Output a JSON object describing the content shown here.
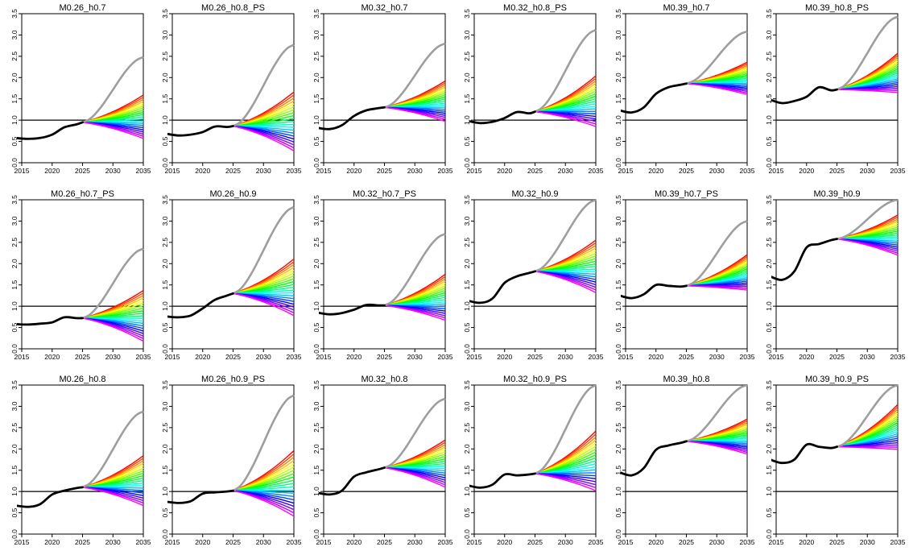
{
  "figure": {
    "colors": {
      "historical": "#000000",
      "high_projection": "#9e9e9e",
      "reference_line": "#000000",
      "rainbow_scale": [
        "#ff0000",
        "#ff8000",
        "#ffff00",
        "#80ff00",
        "#00ff00",
        "#00ff80",
        "#00ffff",
        "#0080ff",
        "#0000ff",
        "#8000ff",
        "#ff00ff"
      ]
    },
    "x_ticks": [
      "2015",
      "2020",
      "2025",
      "2030",
      "2035"
    ],
    "y_ticks": [
      "0.0",
      "0.5",
      "1.0",
      "1.5",
      "2.0",
      "2.5",
      "3.0",
      "3.5"
    ]
  },
  "chart_data": [
    {
      "type": "line",
      "title": "M0.26_h0.7",
      "xlim": [
        2015,
        2035
      ],
      "ylim": [
        0,
        3.5
      ],
      "reference_line": 1.0,
      "x_hist": [
        2014,
        2016,
        2018,
        2020,
        2022,
        2024,
        2025
      ],
      "hist_values": [
        0.58,
        0.56,
        0.58,
        0.66,
        0.83,
        0.9,
        0.95
      ],
      "proj_start": 2025,
      "proj_end": 2035,
      "proj_start_value": 0.95,
      "grey_end": 2.48,
      "proj_top_end": 1.59,
      "proj_bottom_end": 0.57,
      "n_scenarios": 21
    },
    {
      "type": "line",
      "title": "M0.26_h0.8_PS",
      "xlim": [
        2015,
        2035
      ],
      "ylim": [
        0,
        3.5
      ],
      "reference_line": 1.0,
      "x_hist": [
        2014,
        2016,
        2018,
        2020,
        2022,
        2024,
        2025
      ],
      "hist_values": [
        0.68,
        0.64,
        0.66,
        0.72,
        0.85,
        0.84,
        0.86
      ],
      "proj_start": 2025,
      "proj_end": 2035,
      "proj_start_value": 0.86,
      "grey_end": 2.77,
      "proj_top_end": 1.66,
      "proj_bottom_end": 0.28,
      "n_scenarios": 21
    },
    {
      "type": "line",
      "title": "M0.32_h0.7",
      "xlim": [
        2015,
        2035
      ],
      "ylim": [
        0,
        3.5
      ],
      "reference_line": 1.0,
      "x_hist": [
        2014,
        2016,
        2018,
        2020,
        2022,
        2024,
        2025
      ],
      "hist_values": [
        0.82,
        0.79,
        0.88,
        1.1,
        1.23,
        1.28,
        1.3
      ],
      "proj_start": 2025,
      "proj_end": 2035,
      "proj_start_value": 1.3,
      "grey_end": 2.8,
      "proj_top_end": 1.92,
      "proj_bottom_end": 0.97,
      "n_scenarios": 21
    },
    {
      "type": "line",
      "title": "M0.32_h0.8_PS",
      "xlim": [
        2015,
        2035
      ],
      "ylim": [
        0,
        3.5
      ],
      "reference_line": 1.0,
      "x_hist": [
        2014,
        2016,
        2018,
        2020,
        2022,
        2024,
        2025
      ],
      "hist_values": [
        0.98,
        0.93,
        0.96,
        1.05,
        1.19,
        1.16,
        1.2
      ],
      "proj_start": 2025,
      "proj_end": 2035,
      "proj_start_value": 1.2,
      "grey_end": 3.12,
      "proj_top_end": 2.04,
      "proj_bottom_end": 0.85,
      "n_scenarios": 21
    },
    {
      "type": "line",
      "title": "M0.39_h0.7",
      "xlim": [
        2015,
        2035
      ],
      "ylim": [
        0,
        3.5
      ],
      "reference_line": 1.0,
      "x_hist": [
        2014,
        2016,
        2018,
        2020,
        2022,
        2024,
        2025
      ],
      "hist_values": [
        1.23,
        1.18,
        1.3,
        1.62,
        1.77,
        1.83,
        1.86
      ],
      "proj_start": 2025,
      "proj_end": 2035,
      "proj_start_value": 1.86,
      "grey_end": 3.08,
      "proj_top_end": 2.36,
      "proj_bottom_end": 1.6,
      "n_scenarios": 21
    },
    {
      "type": "line",
      "title": "M0.39_h0.8_PS",
      "xlim": [
        2015,
        2035
      ],
      "ylim": [
        0,
        3.5
      ],
      "reference_line": 1.0,
      "x_hist": [
        2014,
        2016,
        2018,
        2020,
        2022,
        2024,
        2025
      ],
      "hist_values": [
        1.48,
        1.4,
        1.45,
        1.55,
        1.77,
        1.7,
        1.72
      ],
      "proj_start": 2025,
      "proj_end": 2035,
      "proj_start_value": 1.72,
      "grey_end": 3.43,
      "proj_top_end": 2.57,
      "proj_bottom_end": 1.65,
      "n_scenarios": 21
    },
    {
      "type": "line",
      "title": "M0.26_h0.7_PS",
      "xlim": [
        2015,
        2035
      ],
      "ylim": [
        0,
        3.5
      ],
      "reference_line": 1.0,
      "x_hist": [
        2014,
        2016,
        2018,
        2020,
        2022,
        2024,
        2025
      ],
      "hist_values": [
        0.58,
        0.57,
        0.59,
        0.62,
        0.74,
        0.72,
        0.72
      ],
      "proj_start": 2025,
      "proj_end": 2035,
      "proj_start_value": 0.72,
      "grey_end": 2.35,
      "proj_top_end": 1.37,
      "proj_bottom_end": 0.18,
      "n_scenarios": 21
    },
    {
      "type": "line",
      "title": "M0.26_h0.9",
      "xlim": [
        2015,
        2035
      ],
      "ylim": [
        0,
        3.5
      ],
      "reference_line": 1.0,
      "x_hist": [
        2014,
        2016,
        2018,
        2020,
        2022,
        2024,
        2025
      ],
      "hist_values": [
        0.76,
        0.74,
        0.78,
        0.95,
        1.15,
        1.25,
        1.3
      ],
      "proj_start": 2025,
      "proj_end": 2035,
      "proj_start_value": 1.3,
      "grey_end": 3.33,
      "proj_top_end": 2.11,
      "proj_bottom_end": 0.78,
      "n_scenarios": 21
    },
    {
      "type": "line",
      "title": "M0.32_h0.7_PS",
      "xlim": [
        2015,
        2035
      ],
      "ylim": [
        0,
        3.5
      ],
      "reference_line": 1.0,
      "x_hist": [
        2014,
        2016,
        2018,
        2020,
        2022,
        2024,
        2025
      ],
      "hist_values": [
        0.85,
        0.81,
        0.84,
        0.92,
        1.03,
        1.02,
        1.02
      ],
      "proj_start": 2025,
      "proj_end": 2035,
      "proj_start_value": 1.02,
      "grey_end": 2.7,
      "proj_top_end": 1.75,
      "proj_bottom_end": 0.67,
      "n_scenarios": 21
    },
    {
      "type": "line",
      "title": "M0.32_h0.9",
      "xlim": [
        2015,
        2035
      ],
      "ylim": [
        0,
        3.5
      ],
      "reference_line": 1.0,
      "x_hist": [
        2014,
        2016,
        2018,
        2020,
        2022,
        2024,
        2025
      ],
      "hist_values": [
        1.13,
        1.08,
        1.18,
        1.55,
        1.7,
        1.78,
        1.82
      ],
      "proj_start": 2025,
      "proj_end": 2035,
      "proj_start_value": 1.82,
      "grey_end": 3.5,
      "proj_top_end": 2.55,
      "proj_bottom_end": 1.32,
      "n_scenarios": 21
    },
    {
      "type": "line",
      "title": "M0.39_h0.7_PS",
      "xlim": [
        2015,
        2035
      ],
      "ylim": [
        0,
        3.5
      ],
      "reference_line": 1.0,
      "x_hist": [
        2014,
        2016,
        2018,
        2020,
        2022,
        2024,
        2025
      ],
      "hist_values": [
        1.25,
        1.19,
        1.28,
        1.5,
        1.48,
        1.46,
        1.48
      ],
      "proj_start": 2025,
      "proj_end": 2035,
      "proj_start_value": 1.48,
      "grey_end": 3.0,
      "proj_top_end": 2.21,
      "proj_bottom_end": 1.38,
      "n_scenarios": 21
    },
    {
      "type": "line",
      "title": "M0.39_h0.9",
      "xlim": [
        2015,
        2035
      ],
      "ylim": [
        0,
        3.5
      ],
      "reference_line": 1.0,
      "x_hist": [
        2014,
        2016,
        2018,
        2020,
        2022,
        2024,
        2025
      ],
      "hist_values": [
        1.7,
        1.62,
        1.82,
        2.38,
        2.46,
        2.55,
        2.58
      ],
      "proj_start": 2025,
      "proj_end": 2035,
      "proj_start_value": 2.58,
      "grey_end": 3.5,
      "proj_top_end": 3.14,
      "proj_bottom_end": 2.2,
      "n_scenarios": 21
    },
    {
      "type": "line",
      "title": "M0.26_h0.8",
      "xlim": [
        2015,
        2035
      ],
      "ylim": [
        0,
        3.5
      ],
      "reference_line": 1.0,
      "x_hist": [
        2014,
        2016,
        2018,
        2020,
        2022,
        2024,
        2025
      ],
      "hist_values": [
        0.67,
        0.64,
        0.7,
        0.93,
        1.02,
        1.08,
        1.1
      ],
      "proj_start": 2025,
      "proj_end": 2035,
      "proj_start_value": 1.1,
      "grey_end": 2.88,
      "proj_top_end": 1.84,
      "proj_bottom_end": 0.67,
      "n_scenarios": 21
    },
    {
      "type": "line",
      "title": "M0.26_h0.9_PS",
      "xlim": [
        2015,
        2035
      ],
      "ylim": [
        0,
        3.5
      ],
      "reference_line": 1.0,
      "x_hist": [
        2014,
        2016,
        2018,
        2020,
        2022,
        2024,
        2025
      ],
      "hist_values": [
        0.76,
        0.73,
        0.77,
        0.95,
        0.98,
        1.0,
        1.02
      ],
      "proj_start": 2025,
      "proj_end": 2035,
      "proj_start_value": 1.02,
      "grey_end": 3.26,
      "proj_top_end": 1.96,
      "proj_bottom_end": 0.42,
      "n_scenarios": 21
    },
    {
      "type": "line",
      "title": "M0.32_h0.8",
      "xlim": [
        2015,
        2035
      ],
      "ylim": [
        0,
        3.5
      ],
      "reference_line": 1.0,
      "x_hist": [
        2014,
        2016,
        2018,
        2020,
        2022,
        2024,
        2025
      ],
      "hist_values": [
        0.97,
        0.93,
        1.02,
        1.35,
        1.45,
        1.52,
        1.56
      ],
      "proj_start": 2025,
      "proj_end": 2035,
      "proj_start_value": 1.56,
      "grey_end": 3.18,
      "proj_top_end": 2.21,
      "proj_bottom_end": 1.1,
      "n_scenarios": 21
    },
    {
      "type": "line",
      "title": "M0.32_h0.9_PS",
      "xlim": [
        2015,
        2035
      ],
      "ylim": [
        0,
        3.5
      ],
      "reference_line": 1.0,
      "x_hist": [
        2014,
        2016,
        2018,
        2020,
        2022,
        2024,
        2025
      ],
      "hist_values": [
        1.14,
        1.09,
        1.16,
        1.4,
        1.38,
        1.4,
        1.42
      ],
      "proj_start": 2025,
      "proj_end": 2035,
      "proj_start_value": 1.42,
      "grey_end": 3.5,
      "proj_top_end": 2.42,
      "proj_bottom_end": 1.02,
      "n_scenarios": 21
    },
    {
      "type": "line",
      "title": "M0.39_h0.8",
      "xlim": [
        2015,
        2035
      ],
      "ylim": [
        0,
        3.5
      ],
      "reference_line": 1.0,
      "x_hist": [
        2014,
        2016,
        2018,
        2020,
        2022,
        2024,
        2025
      ],
      "hist_values": [
        1.45,
        1.38,
        1.55,
        1.98,
        2.08,
        2.14,
        2.18
      ],
      "proj_start": 2025,
      "proj_end": 2035,
      "proj_start_value": 2.18,
      "grey_end": 3.5,
      "proj_top_end": 2.7,
      "proj_bottom_end": 1.88,
      "n_scenarios": 21
    },
    {
      "type": "line",
      "title": "M0.39_h0.9_PS",
      "xlim": [
        2015,
        2035
      ],
      "ylim": [
        0,
        3.5
      ],
      "reference_line": 1.0,
      "x_hist": [
        2014,
        2016,
        2018,
        2020,
        2022,
        2024,
        2025
      ],
      "hist_values": [
        1.75,
        1.67,
        1.75,
        2.1,
        2.05,
        2.02,
        2.05
      ],
      "proj_start": 2025,
      "proj_end": 2035,
      "proj_start_value": 2.05,
      "grey_end": 3.5,
      "proj_top_end": 3.04,
      "proj_bottom_end": 1.99,
      "n_scenarios": 21
    }
  ]
}
